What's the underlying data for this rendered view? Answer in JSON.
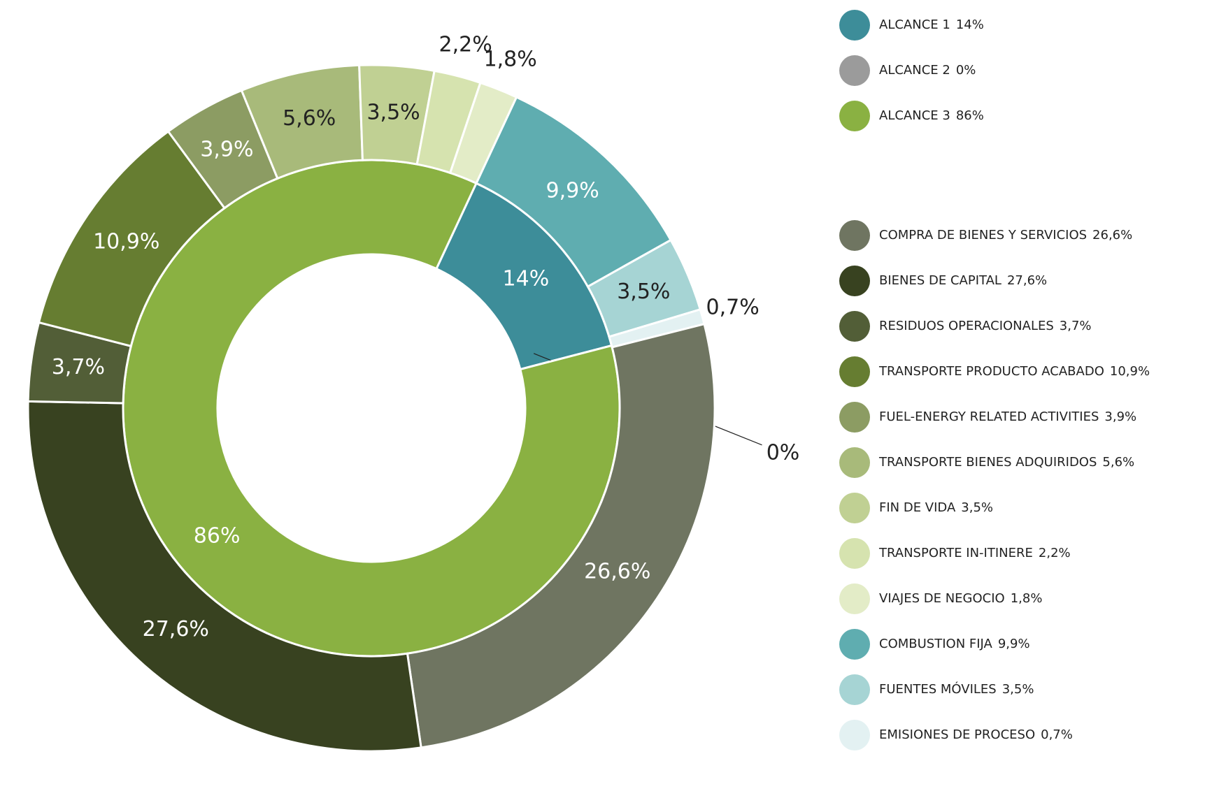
{
  "chart_data": {
    "type": "nested-donut",
    "inner": {
      "categories": [
        "ALCANCE 1",
        "ALCANCE 2",
        "ALCANCE 3"
      ],
      "values": [
        14,
        0,
        86
      ],
      "value_labels": [
        "14%",
        "0%",
        "86%"
      ],
      "colors": [
        "#3d8d99",
        "#9b9b9b",
        "#8ab142"
      ]
    },
    "outer": {
      "categories": [
        "COMPRA DE BIENES Y SERVICIOS",
        "BIENES DE CAPITAL",
        "RESIDUOS OPERACIONALES",
        "TRANSPORTE PRODUCTO ACABADO",
        "FUEL-ENERGY RELATED ACTIVITIES",
        "TRANSPORTE BIENES ADQUIRIDOS",
        "FIN DE VIDA",
        "TRANSPORTE IN-ITINERE",
        "VIAJES DE NEGOCIO",
        "COMBUSTION FIJA",
        "FUENTES MÓVILES",
        "EMISIONES DE PROCESO"
      ],
      "values": [
        26.6,
        27.6,
        3.7,
        10.9,
        3.9,
        5.6,
        3.5,
        2.2,
        1.8,
        9.9,
        3.5,
        0.7
      ],
      "value_labels": [
        "26,6%",
        "27,6%",
        "3,7%",
        "10,9%",
        "3,9%",
        "5,6%",
        "3,5%",
        "2,2%",
        "1,8%",
        "9,9%",
        "3,5%",
        "0,7%"
      ],
      "colors": [
        "#6f7561",
        "#384220",
        "#525e37",
        "#667d31",
        "#8c9c63",
        "#a8ba7a",
        "#c0d093",
        "#d6e3af",
        "#e3ecc7",
        "#5fadb0",
        "#a6d4d4",
        "#e3f1f2"
      ]
    }
  }
}
